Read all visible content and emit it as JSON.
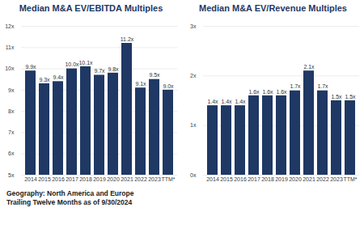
{
  "chart_data": [
    {
      "type": "bar",
      "title": "Median M&A EV/EBITDA Multiples",
      "categories": [
        "2014",
        "2015",
        "2016",
        "2017",
        "2018",
        "2019",
        "2020",
        "2021",
        "2022",
        "2023",
        "TTM*"
      ],
      "values": [
        9.9,
        9.3,
        9.4,
        10.0,
        10.1,
        9.7,
        9.8,
        11.2,
        9.1,
        9.5,
        9.0
      ],
      "value_labels": [
        "9.9x",
        "9.3x",
        "9.4x",
        "10.0x",
        "10.1x",
        "9.7x",
        "9.8x",
        "11.2x",
        "9.1x",
        "9.5x",
        "9.0x"
      ],
      "color": "#1f3864",
      "ylim": [
        5,
        12
      ],
      "yticks": [
        {
          "value": 5,
          "label": "5x"
        },
        {
          "value": 6,
          "label": "6x"
        },
        {
          "value": 7,
          "label": "7x"
        },
        {
          "value": 8,
          "label": "8x"
        },
        {
          "value": 9,
          "label": "9x"
        },
        {
          "value": 10,
          "label": "10x"
        },
        {
          "value": 11,
          "label": "11x"
        },
        {
          "value": 12,
          "label": "12x"
        }
      ],
      "grid": true,
      "data_labels": true
    },
    {
      "type": "bar",
      "title": "Median M&A EV/Revenue Multiples",
      "categories": [
        "2014",
        "2015",
        "2016",
        "2017",
        "2018",
        "2019",
        "2020",
        "2021",
        "2022",
        "2023",
        "TTM*"
      ],
      "values": [
        1.4,
        1.4,
        1.4,
        1.6,
        1.6,
        1.6,
        1.7,
        2.1,
        1.7,
        1.5,
        1.5
      ],
      "value_labels": [
        "1.4x",
        "1.4x",
        "1.4x",
        "1.6x",
        "1.6x",
        "1.6x",
        "1.7x",
        "2.1x",
        "1.7x",
        "1.5x",
        "1.5x"
      ],
      "color": "#1f3864",
      "ylim": [
        0,
        3
      ],
      "yticks": [
        {
          "value": 0,
          "label": "0x"
        },
        {
          "value": 1,
          "label": "1x"
        },
        {
          "value": 2,
          "label": "2x"
        },
        {
          "value": 3,
          "label": "3x"
        }
      ],
      "grid": true,
      "data_labels": true
    }
  ],
  "caption": [
    "Geography: North America and Europe",
    "Trailing Twelve Months as of 9/30/2024"
  ]
}
